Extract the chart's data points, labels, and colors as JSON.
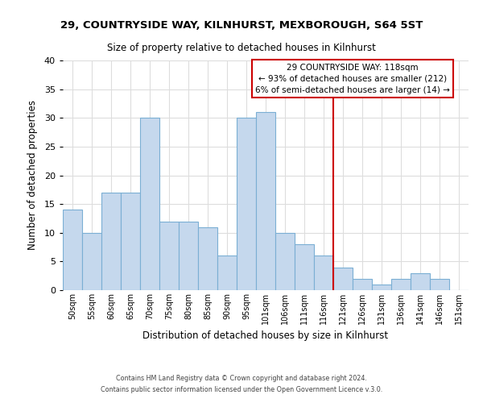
{
  "title": "29, COUNTRYSIDE WAY, KILNHURST, MEXBOROUGH, S64 5ST",
  "subtitle": "Size of property relative to detached houses in Kilnhurst",
  "xlabel": "Distribution of detached houses by size in Kilnhurst",
  "ylabel": "Number of detached properties",
  "categories": [
    "50sqm",
    "55sqm",
    "60sqm",
    "65sqm",
    "70sqm",
    "75sqm",
    "80sqm",
    "85sqm",
    "90sqm",
    "95sqm",
    "101sqm",
    "106sqm",
    "111sqm",
    "116sqm",
    "121sqm",
    "126sqm",
    "131sqm",
    "136sqm",
    "141sqm",
    "146sqm",
    "151sqm"
  ],
  "values": [
    14,
    10,
    17,
    17,
    30,
    12,
    12,
    11,
    6,
    30,
    31,
    10,
    8,
    6,
    4,
    2,
    1,
    2,
    3,
    2,
    0
  ],
  "bar_color": "#c5d8ed",
  "bar_edge_color": "#7bafd4",
  "vline_x_index": 13.5,
  "vline_color": "#cc0000",
  "annotation_title": "29 COUNTRYSIDE WAY: 118sqm",
  "annotation_line1": "← 93% of detached houses are smaller (212)",
  "annotation_line2": "6% of semi-detached houses are larger (14) →",
  "annotation_box_color": "#ffffff",
  "annotation_box_edge_color": "#cc0000",
  "ylim": [
    0,
    40
  ],
  "yticks": [
    0,
    5,
    10,
    15,
    20,
    25,
    30,
    35,
    40
  ],
  "footer1": "Contains HM Land Registry data © Crown copyright and database right 2024.",
  "footer2": "Contains public sector information licensed under the Open Government Licence v.3.0.",
  "bg_color": "#ffffff",
  "grid_color": "#dddddd"
}
